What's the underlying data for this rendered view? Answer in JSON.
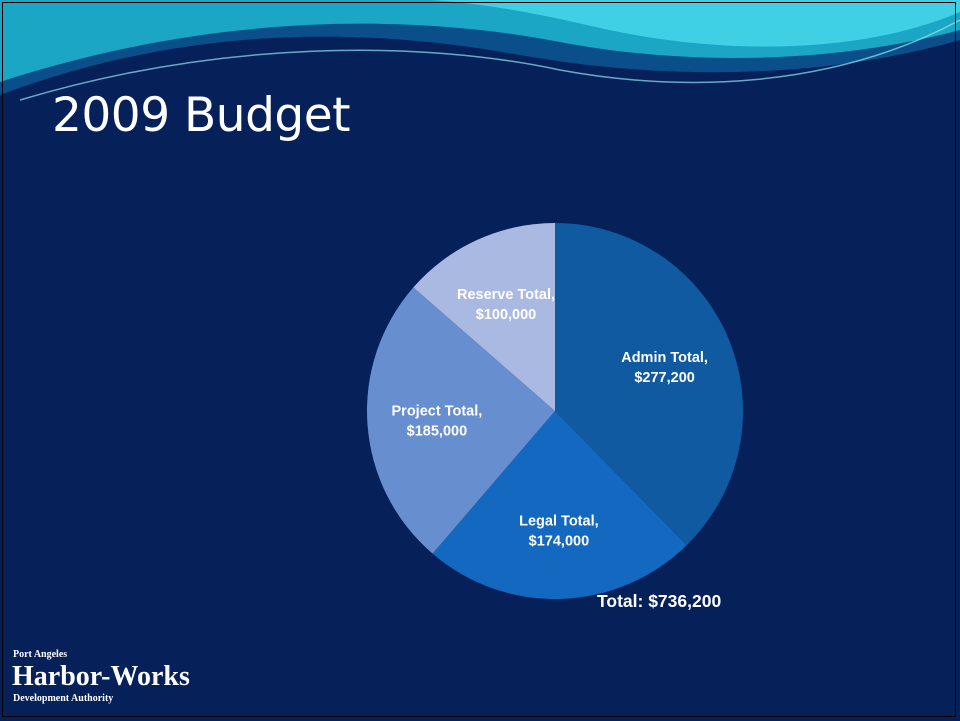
{
  "slide": {
    "title": "2009 Budget",
    "total_label": "Total: $736,200",
    "colors": {
      "background": "#06205a",
      "wave_light": "#3fd0e6",
      "wave_mid": "#1aa6c4",
      "wave_dark": "#0a4f8a"
    }
  },
  "logo": {
    "line1": "Port Angeles",
    "line2": "Harbor-Works",
    "line3": "Development Authority"
  },
  "chart_data": {
    "type": "pie",
    "title": "",
    "slices": [
      {
        "name": "Admin Total",
        "value": 277200,
        "label_line1": "Admin Total,",
        "label_line2": "$277,200",
        "color": "#0f5aa0"
      },
      {
        "name": "Legal Total",
        "value": 174000,
        "label_line1": "Legal Total,",
        "label_line2": "$174,000",
        "color": "#1369c0"
      },
      {
        "name": "Project Total",
        "value": 185000,
        "label_line1": "Project Total,",
        "label_line2": "$185,000",
        "color": "#678fd0"
      },
      {
        "name": "Reserve Total",
        "value": 100000,
        "label_line1": "Reserve Total,",
        "label_line2": "$100,000",
        "color": "#a9b9e1"
      }
    ],
    "start_angle_deg": 0,
    "direction": "clockwise",
    "legend": "none"
  }
}
